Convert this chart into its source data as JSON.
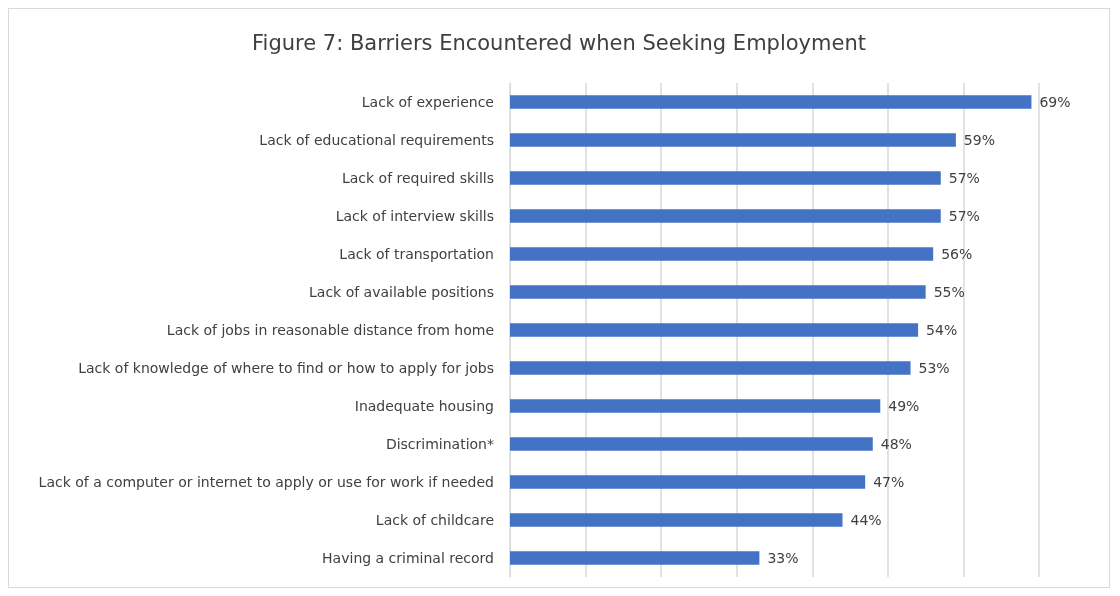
{
  "chart_data": {
    "type": "bar",
    "orientation": "horizontal",
    "title": "Figure 7: Barriers Encountered when Seeking Employment",
    "categories": [
      "Lack of experience",
      "Lack of educational requirements",
      "Lack of required skills",
      "Lack of interview skills",
      "Lack of transportation",
      "Lack of available positions",
      "Lack of jobs in reasonable distance from home",
      "Lack of knowledge of where to find or how to apply for jobs",
      "Inadequate housing",
      "Discrimination*",
      "Lack of a computer or internet to apply or use for work if needed",
      "Lack of childcare",
      "Having a criminal record"
    ],
    "values": [
      69,
      59,
      57,
      57,
      56,
      55,
      54,
      53,
      49,
      48,
      47,
      44,
      33
    ],
    "value_labels": [
      "69%",
      "59%",
      "57%",
      "57%",
      "56%",
      "55%",
      "54%",
      "53%",
      "49%",
      "48%",
      "47%",
      "44%",
      "33%"
    ],
    "color": "#4472c4",
    "xlim": [
      0,
      70
    ],
    "xticks": [
      {
        "value": 0,
        "label": null
      },
      {
        "value": 10,
        "label": null
      },
      {
        "value": 20,
        "label": null
      },
      {
        "value": 30,
        "label": null
      },
      {
        "value": 40,
        "label": null
      },
      {
        "value": 50,
        "label": null
      },
      {
        "value": 60,
        "label": null
      },
      {
        "value": 70,
        "label": null
      }
    ],
    "grid": "x",
    "tick_labels": "y"
  }
}
